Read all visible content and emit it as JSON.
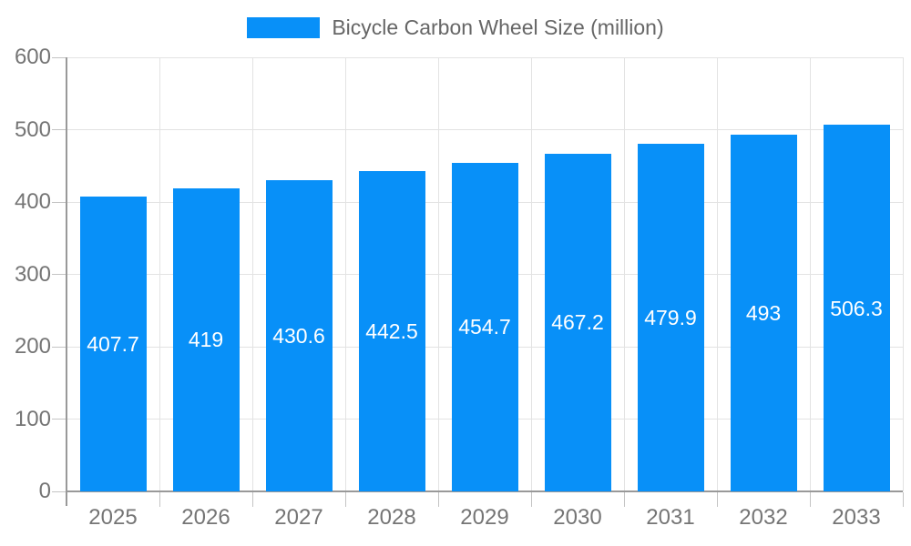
{
  "chart_data": {
    "type": "bar",
    "series_name": "Bicycle Carbon Wheel Size (million)",
    "legend_entries": [
      "Bicycle Carbon Wheel Size (million)"
    ],
    "legend_position": "top",
    "categories": [
      "2025",
      "2026",
      "2027",
      "2028",
      "2029",
      "2030",
      "2031",
      "2032",
      "2033"
    ],
    "values": [
      407.7,
      419,
      430.6,
      442.5,
      454.7,
      467.2,
      479.9,
      493,
      506.3
    ],
    "xlabel": "",
    "ylabel": "",
    "ylim": [
      0,
      600
    ],
    "yticks": [
      0,
      100,
      200,
      300,
      400,
      500,
      600
    ],
    "grid": true,
    "bar_labels_shown": true,
    "colors": {
      "bar": "#0890f8",
      "bar_label": "#ffffff",
      "axis_text": "#757575",
      "legend_text": "#666666"
    }
  }
}
